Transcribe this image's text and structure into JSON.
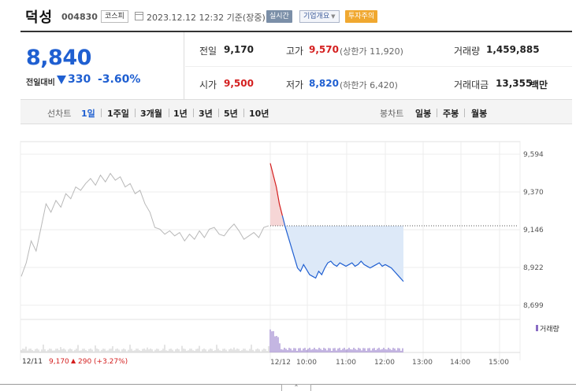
{
  "header": {
    "stock_name": "덕성",
    "stock_code": "004830",
    "market": "코스피",
    "date_text": "2023.12.12 12:32 기준(장중)",
    "btn_realtime": "실시간",
    "btn_company": "기업개요",
    "btn_caution": "투자주의"
  },
  "price": {
    "current": "8,840",
    "vs_label": "전일대비",
    "change": "330",
    "change_pct": "-3.60%",
    "change_direction": "down"
  },
  "stats": {
    "prev_close_label": "전일",
    "prev_close": "9,170",
    "high_label": "고가",
    "high": "9,570",
    "upper_limit": "(상한가 11,920)",
    "volume_label": "거래량",
    "volume": "1,459,885",
    "open_label": "시가",
    "open": "9,500",
    "low_label": "저가",
    "low": "8,820",
    "lower_limit": "(하한가 6,420)",
    "amount_label": "거래대금",
    "amount": "13,355",
    "amount_unit": "백만"
  },
  "toolbar": {
    "line_label": "선차트",
    "periods": [
      "1일",
      "1주일",
      "3개월",
      "1년",
      "3년",
      "5년",
      "10년"
    ],
    "active_period": "1일",
    "candle_label": "봉차트",
    "candles": [
      "일봉",
      "주봉",
      "월봉"
    ]
  },
  "colors": {
    "up": "#d41f1f",
    "down": "#1f5fd1",
    "prev_line": "#999999",
    "volume": "#8a6cc4"
  },
  "chart_data": {
    "type": "line",
    "y_ticks": [
      "9,594",
      "9,370",
      "9,146",
      "8,922",
      "8,699"
    ],
    "ylim": [
      8699,
      9594
    ],
    "x_ticks": [
      "12/12",
      "10:00",
      "11:00",
      "12:00",
      "13:00",
      "14:00",
      "15:00"
    ],
    "volume_legend": "거래량",
    "prev_day": {
      "label": "12/11",
      "close_text": "9,170",
      "change_text": "290 (+3.27%)",
      "values": [
        8870,
        8950,
        9080,
        9020,
        9160,
        9300,
        9250,
        9320,
        9280,
        9360,
        9330,
        9400,
        9380,
        9420,
        9450,
        9410,
        9470,
        9430,
        9480,
        9440,
        9460,
        9400,
        9420,
        9360,
        9380,
        9300,
        9250,
        9160,
        9150,
        9120,
        9140,
        9110,
        9130,
        9080,
        9120,
        9090,
        9140,
        9100,
        9150,
        9160,
        9120,
        9110,
        9150,
        9180,
        9140,
        9090,
        9110,
        9130,
        9100,
        9160,
        9170
      ]
    },
    "today": {
      "prev_close": 9170,
      "values": [
        9540,
        9470,
        9400,
        9300,
        9230,
        9160,
        9100,
        9040,
        8980,
        8920,
        8900,
        8940,
        8910,
        8880,
        8870,
        8860,
        8900,
        8880,
        8920,
        8950,
        8960,
        8940,
        8930,
        8950,
        8940,
        8930,
        8940,
        8950,
        8930,
        8940,
        8960,
        8940,
        8930,
        8920,
        8930,
        8940,
        8950,
        8930,
        8940,
        8930,
        8920,
        8900,
        8880,
        8860,
        8840
      ]
    }
  }
}
